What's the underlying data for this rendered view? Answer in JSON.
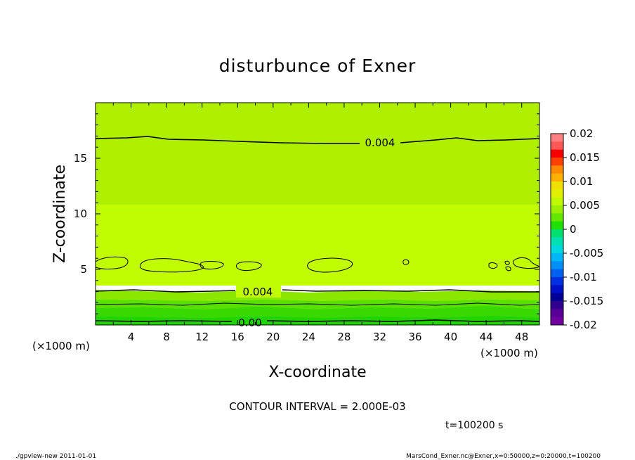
{
  "chart_data": {
    "type": "contour",
    "title": "disturbunce of Exner",
    "xlabel": "X-coordinate",
    "ylabel": "Z-coordinate",
    "x_unit": "(×1000 m)",
    "y_unit": "(×1000 m)",
    "xlim": [
      0,
      50
    ],
    "ylim": [
      0,
      20
    ],
    "x_ticks": [
      4,
      8,
      12,
      16,
      20,
      24,
      28,
      32,
      36,
      40,
      44,
      48
    ],
    "y_ticks": [
      5,
      10,
      15
    ],
    "grid": false,
    "colorbar": {
      "ticks": [
        "0.02",
        "0.015",
        "0.01",
        "0.005",
        "0",
        "-0.005",
        "-0.01",
        "-0.015",
        "-0.02"
      ],
      "colors": [
        "#ff8080",
        "#ff5858",
        "#f80000",
        "#ff4000",
        "#ff8a00",
        "#ffb000",
        "#f0e000",
        "#e0f000",
        "#c0f800",
        "#9af000",
        "#64e800",
        "#20e000",
        "#00e070",
        "#00e0b0",
        "#00d8e0",
        "#00b8f8",
        "#0090f8",
        "#0060f0",
        "#0030e0",
        "#0010c8",
        "#000098",
        "#300090",
        "#580098",
        "#7000a0"
      ]
    },
    "contour_labels": [
      "0.004",
      "0.004",
      "0.00"
    ],
    "contour_interval_text": "CONTOUR INTERVAL = 2.000E-03",
    "time_text": "t=100200 s"
  },
  "footer": {
    "left": "./gpview-new  2011-01-01",
    "right": "MarsCond_Exner.nc@Exner,x=0:50000,z=0:20000,t=100200"
  },
  "colors": {
    "band_top": "#aef000",
    "band_mid": "#c2fc00",
    "band_low1": "#8ae800",
    "band_low2": "#5ae000",
    "band_low3": "#38d800",
    "band_bottom": "#20d400"
  }
}
